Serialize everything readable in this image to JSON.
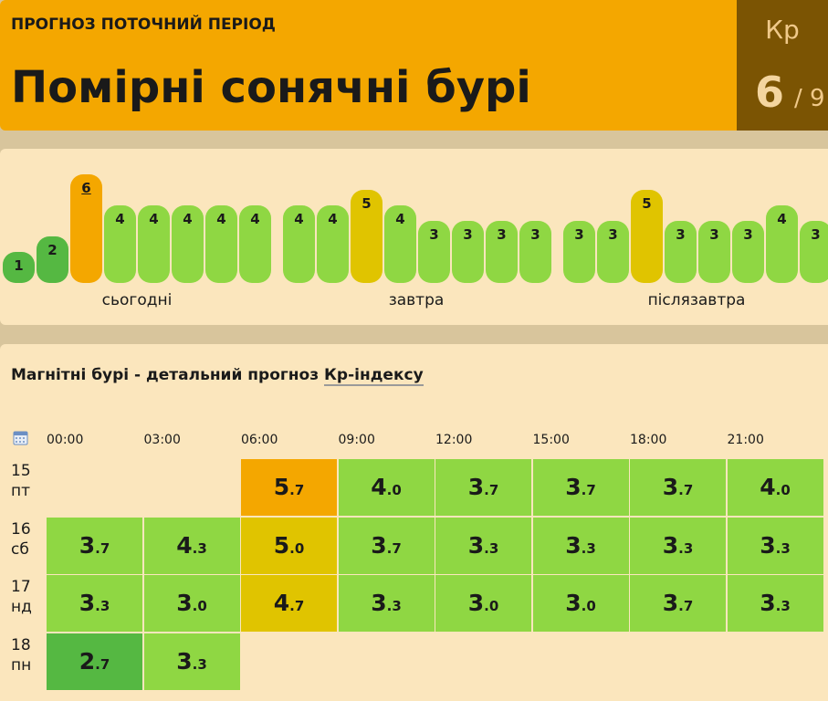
{
  "header": {
    "period_label": "ПРОГНОЗ ПОТОЧНИЙ ПЕРІОД",
    "title": "Помірні сонячні бурі",
    "kp_label": "Кр",
    "kp_value": "6",
    "kp_max": "/ 9"
  },
  "colors": {
    "kp1": "#55b842",
    "kp2": "#55b842",
    "kp3": "#8fd743",
    "kp4": "#8fd743",
    "kp5": "#e0c400",
    "kp6": "#f4a700"
  },
  "bars": [
    {
      "value": 1,
      "label": "1"
    },
    {
      "value": 2,
      "label": "2"
    },
    {
      "value": 6,
      "label": "6",
      "current": true
    },
    {
      "value": 4,
      "label": "4"
    },
    {
      "value": 4,
      "label": "4"
    },
    {
      "value": 4,
      "label": "4"
    },
    {
      "value": 4,
      "label": "4"
    },
    {
      "value": 4,
      "label": "4"
    },
    {
      "value": 4,
      "label": "4"
    },
    {
      "value": 4,
      "label": "4"
    },
    {
      "value": 5,
      "label": "5"
    },
    {
      "value": 4,
      "label": "4"
    },
    {
      "value": 3,
      "label": "3"
    },
    {
      "value": 3,
      "label": "3"
    },
    {
      "value": 3,
      "label": "3"
    },
    {
      "value": 3,
      "label": "3"
    },
    {
      "value": 3,
      "label": "3"
    },
    {
      "value": 3,
      "label": "3"
    },
    {
      "value": 5,
      "label": "5"
    },
    {
      "value": 3,
      "label": "3"
    },
    {
      "value": 3,
      "label": "3"
    },
    {
      "value": 3,
      "label": "3"
    },
    {
      "value": 4,
      "label": "4"
    },
    {
      "value": 3,
      "label": "3"
    }
  ],
  "days": [
    "сьогодні",
    "завтра",
    "післязавтра"
  ],
  "detail": {
    "title": "Магнітні бурі - детальний прогноз ",
    "title_link": "Кр-індексу",
    "times": [
      "00:00",
      "03:00",
      "06:00",
      "09:00",
      "12:00",
      "15:00",
      "18:00",
      "21:00"
    ],
    "rows": [
      {
        "date": "15",
        "weekday": "пт",
        "cells": [
          null,
          null,
          {
            "i": "5",
            "f": ".7",
            "v": 5.7
          },
          {
            "i": "4",
            "f": ".0",
            "v": 4.0
          },
          {
            "i": "3",
            "f": ".7",
            "v": 3.7
          },
          {
            "i": "3",
            "f": ".7",
            "v": 3.7
          },
          {
            "i": "3",
            "f": ".7",
            "v": 3.7
          },
          {
            "i": "4",
            "f": ".0",
            "v": 4.0
          }
        ]
      },
      {
        "date": "16",
        "weekday": "сб",
        "cells": [
          {
            "i": "3",
            "f": ".7",
            "v": 3.7
          },
          {
            "i": "4",
            "f": ".3",
            "v": 4.3
          },
          {
            "i": "5",
            "f": ".0",
            "v": 5.0
          },
          {
            "i": "3",
            "f": ".7",
            "v": 3.7
          },
          {
            "i": "3",
            "f": ".3",
            "v": 3.3
          },
          {
            "i": "3",
            "f": ".3",
            "v": 3.3
          },
          {
            "i": "3",
            "f": ".3",
            "v": 3.3
          },
          {
            "i": "3",
            "f": ".3",
            "v": 3.3
          }
        ]
      },
      {
        "date": "17",
        "weekday": "нд",
        "cells": [
          {
            "i": "3",
            "f": ".3",
            "v": 3.3
          },
          {
            "i": "3",
            "f": ".0",
            "v": 3.0
          },
          {
            "i": "4",
            "f": ".7",
            "v": 4.7
          },
          {
            "i": "3",
            "f": ".3",
            "v": 3.3
          },
          {
            "i": "3",
            "f": ".0",
            "v": 3.0
          },
          {
            "i": "3",
            "f": ".0",
            "v": 3.0
          },
          {
            "i": "3",
            "f": ".7",
            "v": 3.7
          },
          {
            "i": "3",
            "f": ".3",
            "v": 3.3
          }
        ]
      },
      {
        "date": "18",
        "weekday": "пн",
        "cells": [
          {
            "i": "2",
            "f": ".7",
            "v": 2.7
          },
          {
            "i": "3",
            "f": ".3",
            "v": 3.3
          },
          null,
          null,
          null,
          null,
          null,
          null
        ]
      }
    ]
  }
}
